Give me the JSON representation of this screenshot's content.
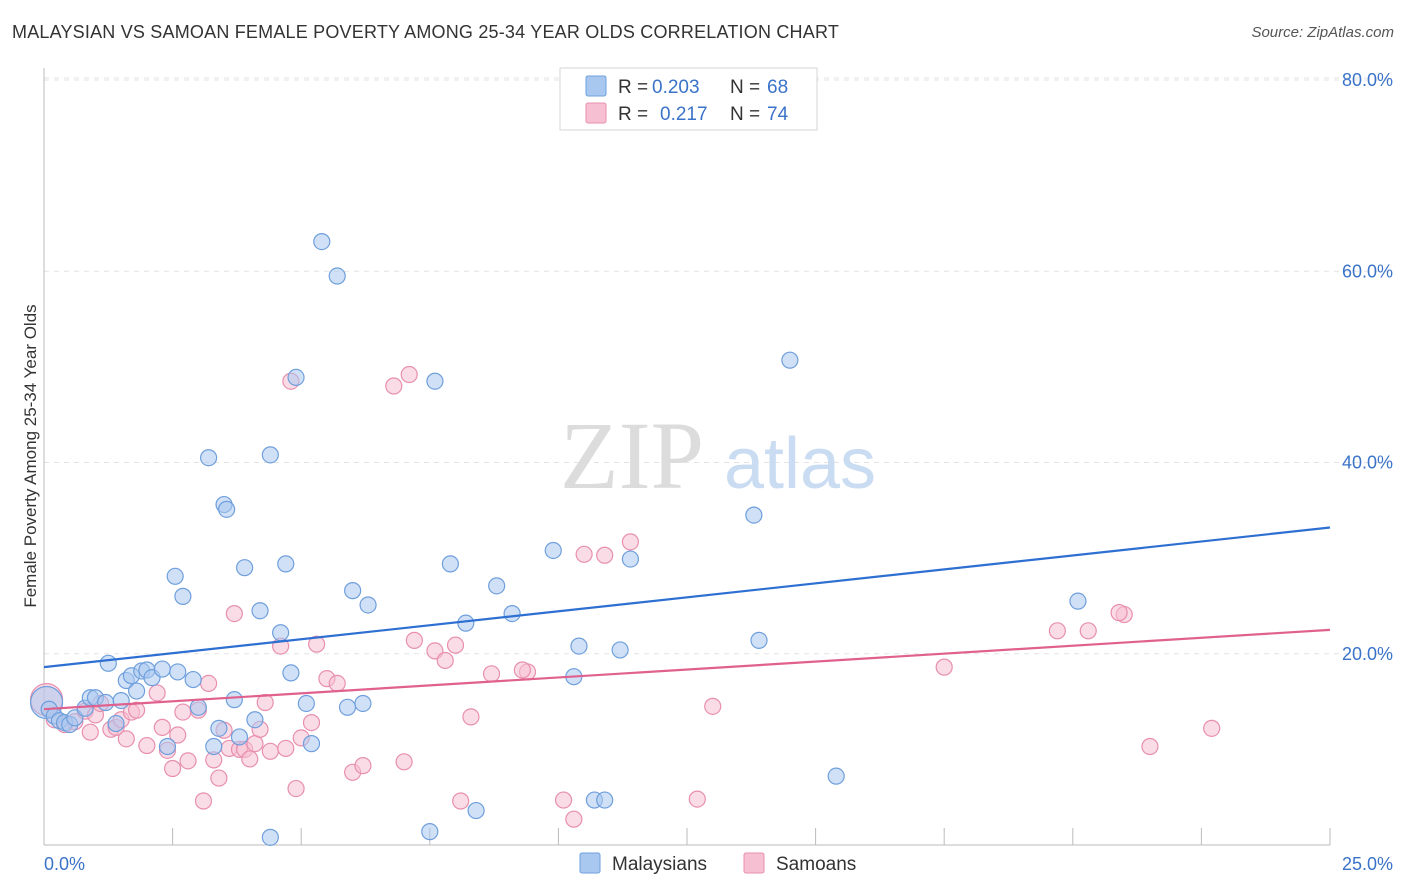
{
  "title": "MALAYSIAN VS SAMOAN FEMALE POVERTY AMONG 25-34 YEAR OLDS CORRELATION CHART",
  "source": "Source: ZipAtlas.com",
  "watermark": {
    "zip": "ZIP",
    "atlas": "atlas"
  },
  "colors": {
    "malaysians_fill": "#a9c8f0",
    "malaysians_stroke": "#6f9fdc",
    "malaysians_line": "#2e6fd2",
    "samoans_fill": "#f6c0d2",
    "samoans_stroke": "#e88fae",
    "samoans_line": "#e0608e",
    "tick_label": "#3a73c8",
    "grid": "#e3e3e3"
  },
  "legend": {
    "row1": {
      "r_label": "R =",
      "r_value": "0.203",
      "n_label": "N =",
      "n_value": "68"
    },
    "row2": {
      "r_label": "R =",
      "r_value": "0.217",
      "n_label": "N =",
      "n_value": "74"
    }
  },
  "chart_data": {
    "type": "scatter",
    "title": "MALAYSIAN VS SAMOAN FEMALE POVERTY AMONG 25-34 YEAR OLDS CORRELATION CHART",
    "xlabel": "",
    "ylabel": "Female Poverty Among 25-34 Year Olds",
    "xlim": [
      0,
      25
    ],
    "ylim": [
      0,
      80
    ],
    "x_tick_labels": [
      "0.0%",
      "25.0%"
    ],
    "y_ticks": [
      20,
      40,
      60,
      80
    ],
    "y_tick_labels": [
      "20.0%",
      "40.0%",
      "60.0%",
      "80.0%"
    ],
    "grid": true,
    "legend_position": "top-center and bottom",
    "series": [
      {
        "name": "Malaysians",
        "r": 0.203,
        "n": 68,
        "trend": {
          "x": [
            0,
            25
          ],
          "y": [
            18.6,
            33.2
          ]
        },
        "points": [
          [
            0.05,
            14.9
          ],
          [
            0.1,
            14.2
          ],
          [
            0.2,
            13.5
          ],
          [
            0.3,
            13.0
          ],
          [
            0.4,
            12.8
          ],
          [
            0.5,
            12.6
          ],
          [
            0.6,
            13.3
          ],
          [
            0.8,
            14.3
          ],
          [
            0.9,
            15.4
          ],
          [
            1.0,
            15.4
          ],
          [
            1.2,
            14.9
          ],
          [
            1.25,
            19.0
          ],
          [
            1.4,
            12.7
          ],
          [
            1.5,
            15.1
          ],
          [
            1.6,
            17.2
          ],
          [
            1.7,
            17.7
          ],
          [
            1.8,
            16.1
          ],
          [
            1.9,
            18.2
          ],
          [
            2.0,
            18.3
          ],
          [
            2.1,
            17.5
          ],
          [
            2.3,
            18.4
          ],
          [
            2.4,
            10.3
          ],
          [
            2.6,
            18.1
          ],
          [
            2.55,
            28.1
          ],
          [
            2.7,
            26.0
          ],
          [
            2.9,
            17.3
          ],
          [
            3.0,
            14.4
          ],
          [
            3.2,
            40.5
          ],
          [
            3.3,
            10.3
          ],
          [
            3.4,
            12.2
          ],
          [
            3.5,
            35.6
          ],
          [
            3.55,
            35.1
          ],
          [
            3.7,
            15.2
          ],
          [
            3.8,
            11.3
          ],
          [
            3.9,
            29.0
          ],
          [
            4.1,
            13.1
          ],
          [
            4.2,
            24.5
          ],
          [
            4.4,
            0.8
          ],
          [
            4.4,
            40.8
          ],
          [
            4.6,
            22.2
          ],
          [
            4.7,
            29.4
          ],
          [
            4.8,
            18.0
          ],
          [
            4.9,
            48.9
          ],
          [
            5.1,
            14.8
          ],
          [
            5.2,
            10.6
          ],
          [
            5.4,
            63.1
          ],
          [
            5.7,
            59.5
          ],
          [
            5.9,
            14.4
          ],
          [
            6.0,
            26.6
          ],
          [
            6.3,
            25.1
          ],
          [
            6.2,
            14.8
          ],
          [
            7.5,
            1.4
          ],
          [
            7.6,
            48.5
          ],
          [
            7.9,
            29.4
          ],
          [
            8.2,
            23.2
          ],
          [
            8.4,
            3.6
          ],
          [
            8.8,
            27.1
          ],
          [
            9.1,
            24.2
          ],
          [
            9.9,
            30.8
          ],
          [
            10.3,
            17.6
          ],
          [
            10.4,
            20.8
          ],
          [
            10.7,
            4.7
          ],
          [
            10.9,
            4.7
          ],
          [
            11.2,
            20.4
          ],
          [
            11.4,
            29.9
          ],
          [
            13.8,
            34.5
          ],
          [
            13.9,
            21.4
          ],
          [
            14.5,
            50.7
          ],
          [
            15.4,
            7.2
          ],
          [
            20.1,
            25.5
          ]
        ]
      },
      {
        "name": "Samoans",
        "r": 0.217,
        "n": 74,
        "trend": {
          "x": [
            0,
            25
          ],
          "y": [
            14.2,
            22.5
          ]
        },
        "points": [
          [
            0.05,
            15.2
          ],
          [
            0.2,
            13.1
          ],
          [
            0.4,
            12.6
          ],
          [
            0.6,
            12.9
          ],
          [
            0.8,
            14.0
          ],
          [
            0.9,
            11.8
          ],
          [
            1.0,
            13.6
          ],
          [
            1.1,
            14.8
          ],
          [
            1.3,
            12.1
          ],
          [
            1.4,
            12.3
          ],
          [
            1.5,
            13.1
          ],
          [
            1.6,
            11.1
          ],
          [
            1.7,
            13.9
          ],
          [
            1.8,
            14.1
          ],
          [
            2.0,
            10.4
          ],
          [
            2.2,
            15.9
          ],
          [
            2.3,
            12.3
          ],
          [
            2.4,
            9.9
          ],
          [
            2.5,
            8.0
          ],
          [
            2.6,
            11.5
          ],
          [
            2.7,
            13.9
          ],
          [
            2.8,
            8.8
          ],
          [
            3.0,
            14.1
          ],
          [
            3.1,
            4.6
          ],
          [
            3.2,
            16.9
          ],
          [
            3.3,
            8.9
          ],
          [
            3.4,
            7.0
          ],
          [
            3.5,
            12.0
          ],
          [
            3.6,
            10.1
          ],
          [
            3.7,
            24.2
          ],
          [
            3.8,
            10.0
          ],
          [
            3.9,
            10.0
          ],
          [
            4.0,
            9.0
          ],
          [
            4.1,
            10.6
          ],
          [
            4.2,
            12.1
          ],
          [
            4.3,
            14.9
          ],
          [
            4.4,
            9.8
          ],
          [
            4.6,
            20.8
          ],
          [
            4.7,
            10.1
          ],
          [
            4.8,
            48.5
          ],
          [
            4.9,
            5.9
          ],
          [
            5.0,
            11.2
          ],
          [
            5.2,
            12.8
          ],
          [
            5.3,
            21.0
          ],
          [
            5.5,
            17.4
          ],
          [
            5.7,
            16.9
          ],
          [
            6.0,
            7.6
          ],
          [
            6.2,
            8.3
          ],
          [
            6.8,
            48.0
          ],
          [
            7.1,
            49.2
          ],
          [
            7.0,
            8.7
          ],
          [
            7.2,
            21.4
          ],
          [
            7.6,
            20.3
          ],
          [
            7.8,
            19.3
          ],
          [
            8.0,
            20.9
          ],
          [
            8.1,
            4.6
          ],
          [
            8.3,
            13.4
          ],
          [
            8.7,
            17.9
          ],
          [
            9.4,
            18.1
          ],
          [
            10.1,
            4.7
          ],
          [
            10.3,
            2.7
          ],
          [
            10.5,
            30.4
          ],
          [
            10.9,
            30.3
          ],
          [
            11.4,
            31.7
          ],
          [
            12.7,
            4.8
          ],
          [
            13.0,
            14.5
          ],
          [
            17.5,
            18.6
          ],
          [
            19.7,
            22.4
          ],
          [
            20.3,
            22.4
          ],
          [
            21.0,
            24.1
          ],
          [
            21.5,
            10.3
          ],
          [
            22.7,
            12.2
          ],
          [
            20.9,
            24.3
          ],
          [
            9.3,
            18.3
          ]
        ]
      }
    ]
  },
  "bottom_legend": {
    "malaysians": "Malaysians",
    "samoans": "Samoans"
  }
}
